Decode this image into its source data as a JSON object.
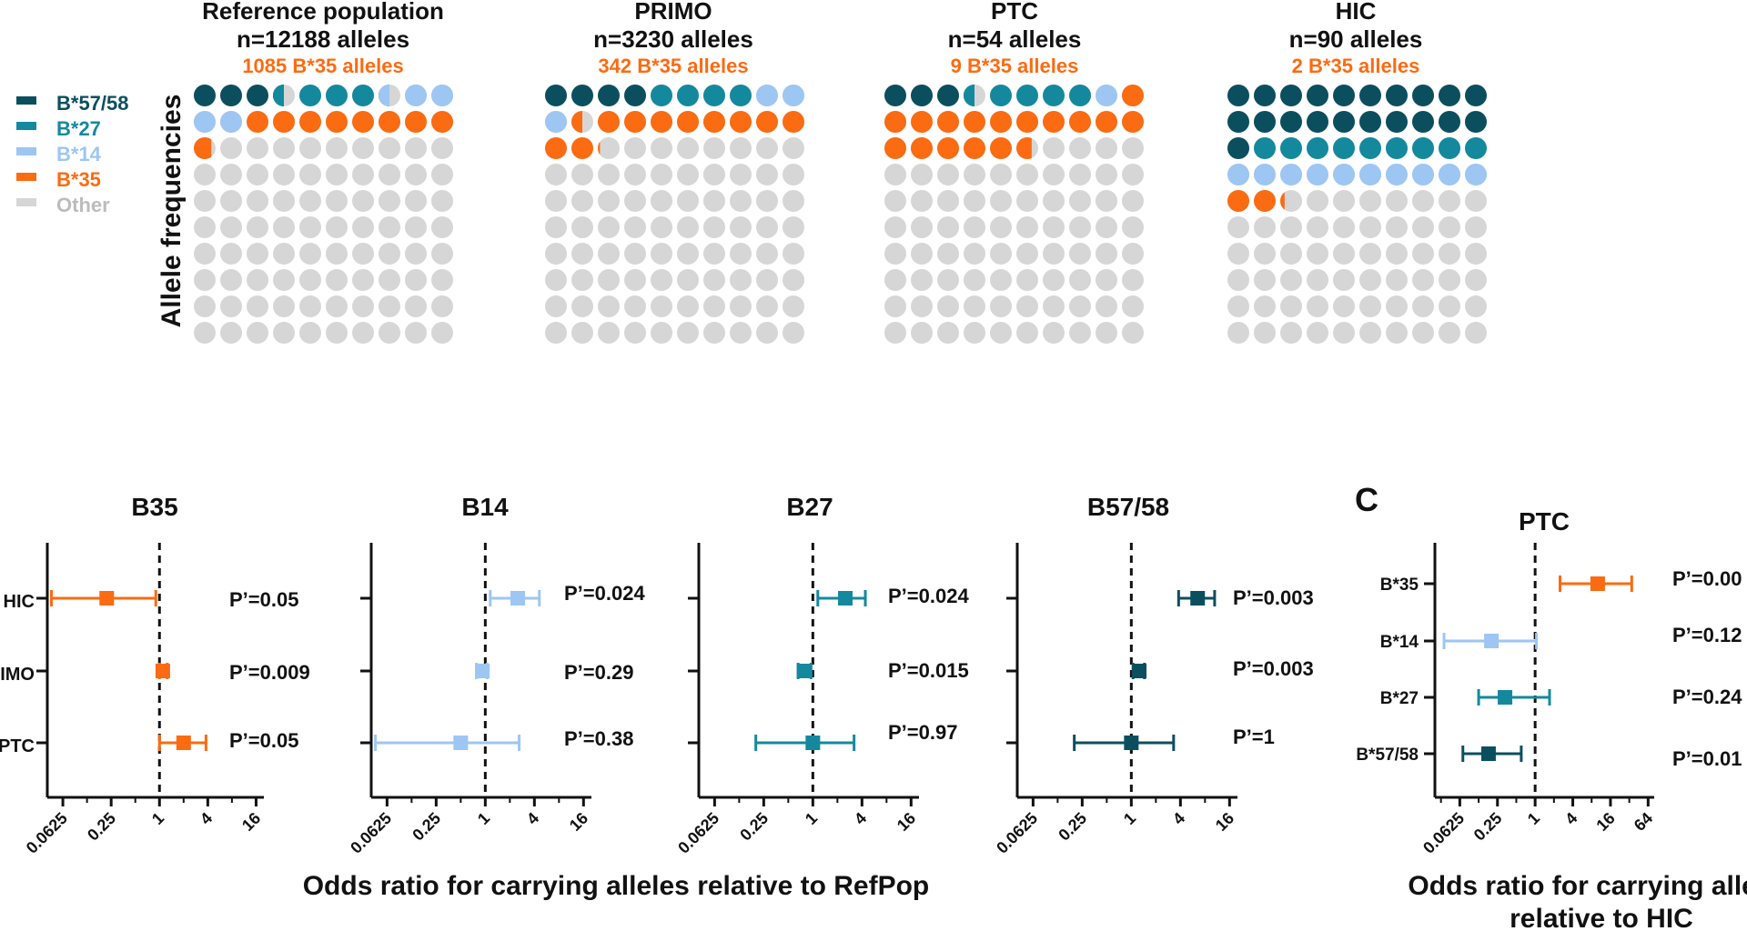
{
  "colors": {
    "b5758": "#0b4f5f",
    "b27": "#14899e",
    "b14": "#9dc6f3",
    "b35": "#fb6b12",
    "other": "#d6d6d6",
    "axis": "#111111"
  },
  "legend": {
    "y_axis_label": "Allele frequencies",
    "items": [
      {
        "label": "B*57/58",
        "color": "#0b4f5f"
      },
      {
        "label": "B*27",
        "color": "#14899e"
      },
      {
        "label": "B*14",
        "color": "#9dc6f3"
      },
      {
        "label": "B*35",
        "color": "#fb6b12"
      },
      {
        "label": "Other",
        "color": "#bcbcbc"
      }
    ]
  },
  "panelA": {
    "groups": [
      {
        "title": "Reference population",
        "n": "n=12188 alleles",
        "b35": "1085 B*35 alleles",
        "counts": {
          "b5758": 3.5,
          "b27": 4,
          "b14": 4.5,
          "b35": 8.8
        }
      },
      {
        "title": "PRIMO",
        "n": "n=3230 alleles",
        "b35": "342 B*35 alleles",
        "counts": {
          "b5758": 4,
          "b27": 4,
          "b14": 3.5,
          "b35": 10.6
        }
      },
      {
        "title": "PTC",
        "n": "n=54 alleles",
        "b35": "9 B*35 alleles",
        "counts": {
          "b5758": 3.5,
          "b27": 4.5,
          "b14": 1,
          "b35": 16.7
        }
      },
      {
        "title": "HIC",
        "n": "n=90 alleles",
        "b35": "2 B*35 alleles",
        "counts": {
          "b5758": 21,
          "b27": 9,
          "b14": 10,
          "b35": 2.2
        }
      }
    ]
  },
  "panelB": {
    "axis_title": "Odds ratio for carrying alleles relative to RefPop",
    "row_labels": [
      "HIC",
      "IMO",
      "PTC"
    ],
    "tick_labels": [
      "0.0625",
      "0.25",
      "1",
      "4",
      "16"
    ]
  },
  "panelC": {
    "letter": "C",
    "title": "PTC",
    "axis_title_line1": "Odds ratio for carrying alleles",
    "axis_title_line2": "relative to HIC",
    "tick_labels": [
      "0.0625",
      "0.25",
      "1",
      "4",
      "16",
      "64"
    ]
  },
  "chart_data": [
    {
      "type": "forest",
      "title": "B35",
      "xscale": "log2",
      "xlim": [
        0.04,
        20
      ],
      "color": "#fb6b12",
      "rows": [
        {
          "label": "HIC",
          "or": 0.22,
          "lo": 0.045,
          "hi": 0.9,
          "p": "P’=0.05"
        },
        {
          "label": "PRIMO",
          "or": 1.1,
          "lo": 1.0,
          "hi": 1.25,
          "p": "P’=0.009"
        },
        {
          "label": "PTC",
          "or": 2.0,
          "lo": 1.0,
          "hi": 3.8,
          "p": "P’=0.05"
        }
      ]
    },
    {
      "type": "forest",
      "title": "B14",
      "xscale": "log2",
      "xlim": [
        0.04,
        20
      ],
      "color": "#9dc6f3",
      "rows": [
        {
          "label": "HIC",
          "or": 2.5,
          "lo": 1.15,
          "hi": 4.6,
          "p": "P’=0.024"
        },
        {
          "label": "PRIMO",
          "or": 0.92,
          "lo": 0.78,
          "hi": 1.05,
          "p": "P’=0.29"
        },
        {
          "label": "PTC",
          "or": 0.5,
          "lo": 0.045,
          "hi": 2.6,
          "p": "P’=0.38"
        }
      ]
    },
    {
      "type": "forest",
      "title": "B27",
      "xscale": "log2",
      "xlim": [
        0.04,
        20
      ],
      "color": "#14899e",
      "rows": [
        {
          "label": "HIC",
          "or": 2.5,
          "lo": 1.15,
          "hi": 4.4,
          "p": "P’=0.024"
        },
        {
          "label": "PRIMO",
          "or": 0.78,
          "lo": 0.66,
          "hi": 0.95,
          "p": "P’=0.015"
        },
        {
          "label": "PTC",
          "or": 1.0,
          "lo": 0.2,
          "hi": 3.2,
          "p": "P’=0.97"
        }
      ]
    },
    {
      "type": "forest",
      "title": "B57/58",
      "xscale": "log2",
      "xlim": [
        0.04,
        20
      ],
      "color": "#0b4f5f",
      "rows": [
        {
          "label": "HIC",
          "or": 6.5,
          "lo": 3.8,
          "hi": 10.5,
          "p": "P’=0.003"
        },
        {
          "label": "PRIMO",
          "or": 1.25,
          "lo": 1.05,
          "hi": 1.45,
          "p": "P’=0.003"
        },
        {
          "label": "PTC",
          "or": 1.0,
          "lo": 0.2,
          "hi": 3.3,
          "p": "P’=1"
        }
      ]
    },
    {
      "type": "forest",
      "title": "PTC",
      "xscale": "log2",
      "xlim": [
        0.025,
        80
      ],
      "rows": [
        {
          "label": "B*35",
          "or": 10,
          "lo": 2.5,
          "hi": 35,
          "p": "P’=0.00",
          "color": "#fb6b12"
        },
        {
          "label": "B*14",
          "or": 0.2,
          "lo": 0.035,
          "hi": 1.05,
          "p": "P’=0.12",
          "color": "#9dc6f3"
        },
        {
          "label": "B*27",
          "or": 0.33,
          "lo": 0.125,
          "hi": 1.7,
          "p": "P’=0.24",
          "color": "#14899e"
        },
        {
          "label": "B*57/58",
          "or": 0.18,
          "lo": 0.07,
          "hi": 0.6,
          "p": "P’=0.01",
          "color": "#0b4f5f"
        }
      ]
    }
  ]
}
